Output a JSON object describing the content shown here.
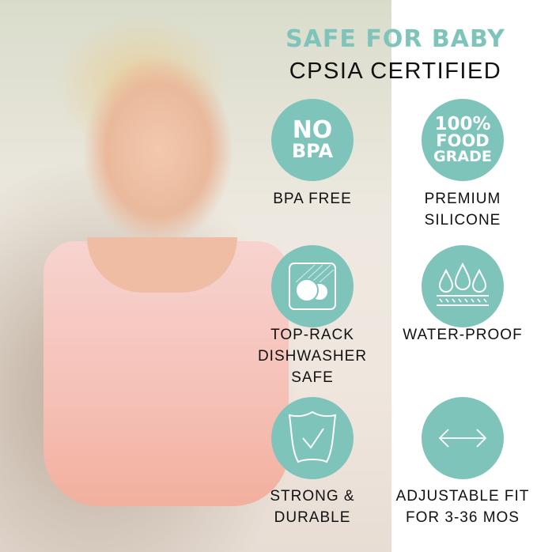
{
  "headline": "SAFE FOR BABY",
  "subheadline": "CPSIA CERTIFIED",
  "accent_color": "#7fc4bb",
  "features": [
    {
      "icon": "no-bpa-badge",
      "badge_lines": [
        "NO",
        "BPA"
      ],
      "label_lines": [
        "BPA FREE"
      ]
    },
    {
      "icon": "food-grade-badge",
      "badge_lines": [
        "100%",
        "FOOD",
        "GRADE"
      ],
      "label_lines": [
        "PREMIUM",
        "SILICONE"
      ]
    },
    {
      "icon": "dishwasher-icon",
      "label_lines": [
        "TOP-RACK",
        "DISHWASHER",
        "SAFE"
      ]
    },
    {
      "icon": "water-drops-icon",
      "label_lines": [
        "WATER-PROOF"
      ]
    },
    {
      "icon": "shield-check-icon",
      "label_lines": [
        "STRONG &",
        "DURABLE"
      ]
    },
    {
      "icon": "double-arrow-icon",
      "label_lines": [
        "ADJUSTABLE FIT",
        "FOR 3-36 MOS"
      ]
    }
  ]
}
